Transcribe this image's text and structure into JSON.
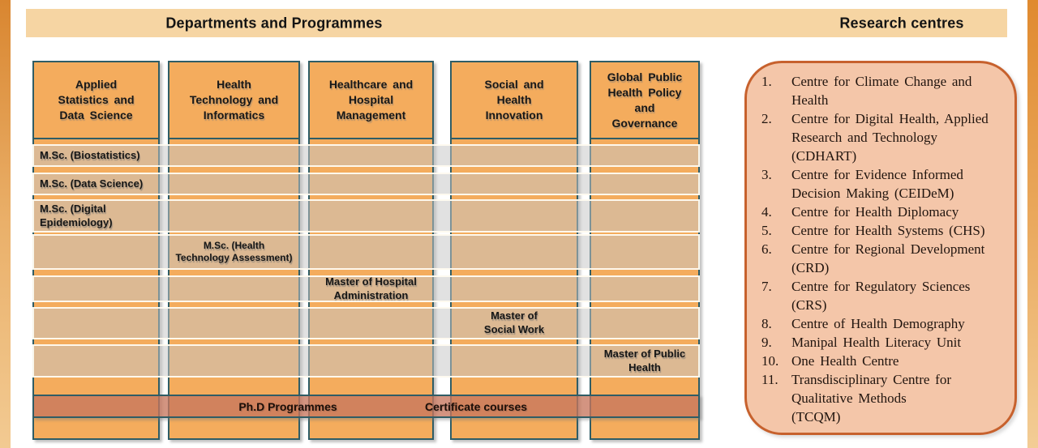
{
  "banner": {
    "departments_title": "Departments and Programmes",
    "research_title": "Research centres"
  },
  "departments": {
    "columns": [
      {
        "label": "Applied\nStatistics and\nData Science"
      },
      {
        "label": "Health\nTechnology and\nInformatics"
      },
      {
        "label": "Healthcare and\nHospital\nManagement"
      },
      {
        "label": "Social and\nHealth\nInnovation"
      },
      {
        "label": "Global Public\nHealth Policy\nand\nGovernance"
      }
    ]
  },
  "programmes": {
    "rows": [
      {
        "label": "M.Sc. (Biostatistics)",
        "department": "Applied Statistics and Data Science"
      },
      {
        "label": "M.Sc. (Data Science)",
        "department": "Applied Statistics and Data Science"
      },
      {
        "label": "M.Sc. (Digital\nEpidemiology)",
        "department": "Applied Statistics and Data Science"
      },
      {
        "label": "M.Sc. (Health\nTechnology Assessment)",
        "department": "Health Technology and Informatics"
      },
      {
        "label": "Master of Hospital\nAdministration",
        "department": "Healthcare and Hospital Management"
      },
      {
        "label": "Master of\nSocial Work",
        "department": "Social and Health Innovation"
      },
      {
        "label": "Master of Public\nHealth",
        "department": "Global Public Health Policy and Governance"
      }
    ],
    "footer": {
      "phd_label": "Ph.D Programmes",
      "certificate_label": "Certificate courses"
    }
  },
  "research_panel": {
    "items": [
      {
        "number": "1.",
        "name": "Centre for Climate Change and\nHealth"
      },
      {
        "number": "2.",
        "name": "Centre for Digital Health, Applied\nResearch and Technology\n(CDHART)"
      },
      {
        "number": "3.",
        "name": "Centre for Evidence Informed\nDecision Making (CEIDeM)"
      },
      {
        "number": "4.",
        "name": "Centre for Health Diplomacy"
      },
      {
        "number": "5.",
        "name": "Centre for Health Systems (CHS)"
      },
      {
        "number": "6.",
        "name": "Centre for Regional Development\n(CRD)"
      },
      {
        "number": "7.",
        "name": "Centre for Regulatory Sciences\n(CRS)"
      },
      {
        "number": "8.",
        "name": "Centre of Health Demography"
      },
      {
        "number": "9.",
        "name": "Manipal Health Literacy Unit"
      },
      {
        "number": "10.",
        "name": "One Health Centre"
      },
      {
        "number": "11.",
        "name": "Transdisciplinary Centre for\nQualitative Methods\n(TCQM)"
      }
    ]
  },
  "colors": {
    "banner_fill": "#F6D5A3",
    "column_fill": "#F4AC5D",
    "column_border": "#2F5D66",
    "row_overlay": "rgba(197,197,197,0.52)",
    "phd_bar_fill": "rgba(198,118,94,0.78)",
    "research_fill": "#F4C6A9",
    "research_border": "#C7612D",
    "edge_gradient_top": "#D98630",
    "edge_gradient_bottom": "#F2CA92"
  }
}
